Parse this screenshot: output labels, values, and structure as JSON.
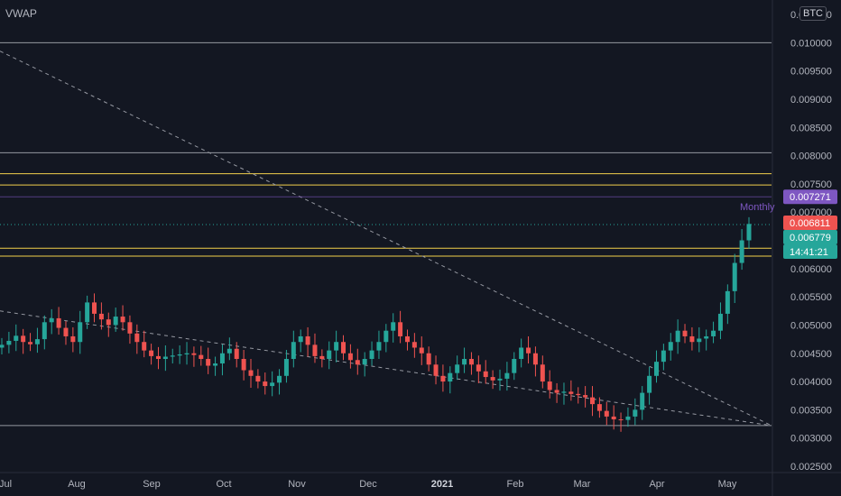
{
  "indicator_label": "VWAP",
  "currency_label": "BTC",
  "chart_data": {
    "type": "candlestick",
    "y_ticks": [
      "0.010500",
      "0.010000",
      "0.009500",
      "0.009000",
      "0.008500",
      "0.008000",
      "0.007500",
      "0.007000",
      "0.006500",
      "0.006000",
      "0.005500",
      "0.005000",
      "0.004500",
      "0.004000",
      "0.003500",
      "0.003000",
      "0.002500"
    ],
    "x_ticks": [
      {
        "label": "Jul",
        "bold": false
      },
      {
        "label": "Aug",
        "bold": false
      },
      {
        "label": "Sep",
        "bold": false
      },
      {
        "label": "Oct",
        "bold": false
      },
      {
        "label": "Nov",
        "bold": false
      },
      {
        "label": "Dec",
        "bold": false
      },
      {
        "label": "2021",
        "bold": true
      },
      {
        "label": "Feb",
        "bold": false
      },
      {
        "label": "Mar",
        "bold": false
      },
      {
        "label": "Apr",
        "bold": false
      },
      {
        "label": "May",
        "bold": false
      }
    ],
    "ylim": [
      0.0025,
      0.0107
    ],
    "horizontal_levels": [
      {
        "value": 0.01,
        "color": "#9598a1"
      },
      {
        "value": 0.00805,
        "color": "#9598a1"
      },
      {
        "value": 0.00768,
        "color": "#f2d04b"
      },
      {
        "value": 0.00748,
        "color": "#f2d04b"
      },
      {
        "value": 0.00636,
        "color": "#f2d04b"
      },
      {
        "value": 0.00622,
        "color": "#f2d04b"
      },
      {
        "value": 0.00322,
        "color": "#9598a1"
      }
    ],
    "close_series": [
      0.00465,
      0.00472,
      0.00481,
      0.0047,
      0.00466,
      0.00475,
      0.00505,
      0.00512,
      0.00495,
      0.0048,
      0.0047,
      0.00505,
      0.0054,
      0.0052,
      0.0051,
      0.005,
      0.00515,
      0.00505,
      0.00485,
      0.0047,
      0.00455,
      0.00445,
      0.0044,
      0.00444,
      0.00446,
      0.00448,
      0.0045,
      0.00447,
      0.0044,
      0.00428,
      0.00432,
      0.0045,
      0.00458,
      0.0044,
      0.0042,
      0.0041,
      0.004,
      0.00392,
      0.00398,
      0.0041,
      0.0044,
      0.0047,
      0.0048,
      0.00465,
      0.00445,
      0.0044,
      0.00455,
      0.0047,
      0.0045,
      0.00438,
      0.0043,
      0.0044,
      0.00455,
      0.0047,
      0.0049,
      0.00505,
      0.0048,
      0.0047,
      0.0046,
      0.0045,
      0.0043,
      0.0041,
      0.004,
      0.00415,
      0.0043,
      0.0044,
      0.0043,
      0.00418,
      0.00408,
      0.00402,
      0.00405,
      0.00415,
      0.0044,
      0.0046,
      0.0045,
      0.0043,
      0.004,
      0.00385,
      0.0038,
      0.00382,
      0.00378,
      0.00376,
      0.00372,
      0.0036,
      0.00348,
      0.00338,
      0.00333,
      0.00332,
      0.00338,
      0.0035,
      0.0038,
      0.0041,
      0.00435,
      0.00455,
      0.0047,
      0.0049,
      0.0048,
      0.0047,
      0.00476,
      0.0048,
      0.0049,
      0.0052,
      0.0056,
      0.0061,
      0.0065,
      0.00679
    ],
    "trendlines": [
      {
        "x1_frac": 0.0,
        "y1": 0.00985,
        "x2_frac": 1.0,
        "y2": 0.00322,
        "style": "dashed"
      },
      {
        "x1_frac": 0.0,
        "y1": 0.00525,
        "x2_frac": 1.0,
        "y2": 0.00322,
        "style": "dashed"
      }
    ],
    "price_badges": [
      {
        "label": "0.007271",
        "value": 0.007271,
        "bg": "#7e57c2"
      },
      {
        "label": "0.006811",
        "value": 0.006811,
        "bg": "#ef5350"
      },
      {
        "label": "0.006779",
        "value": 0.006779,
        "bg": "#26a69a"
      },
      {
        "label": "14:41:21",
        "value": 0.006779,
        "bg": "#26a69a",
        "offset": "below"
      }
    ],
    "marker_label": "Monthly",
    "marker_line_value": 0.007271,
    "current_price": 0.006779
  }
}
